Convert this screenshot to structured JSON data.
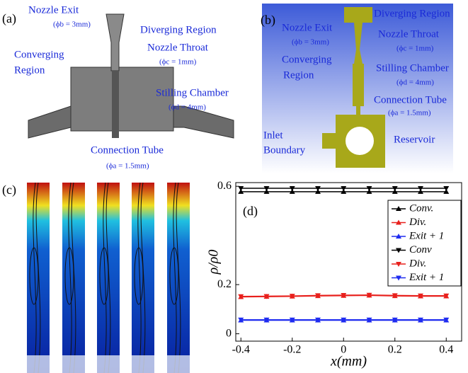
{
  "panels": {
    "a": {
      "label": "(a)",
      "annotations": [
        "Nozzle Exit",
        "(ϕb = 3mm)",
        "Diverging Region",
        "Nozzle Throat",
        "(ϕc = 1mm)",
        "Converging",
        "Region",
        "Stilling Chamber",
        "(ϕd = 4mm)",
        "Connection Tube",
        "(ϕa = 1.5mm)"
      ]
    },
    "b": {
      "label": "(b)",
      "annotations": [
        "Diverging Region",
        "Nozzle Exit",
        "(ϕb = 3mm)",
        "Nozzle Throat",
        "(ϕc = 1mm)",
        "Converging",
        "Region",
        "Stilling Chamber",
        "(ϕd = 4mm)",
        "Connection Tube",
        "(ϕa = 1.5mm)",
        "Inlet",
        "Boundary",
        "Reservoir"
      ]
    },
    "c": {
      "label": "(c)"
    }
  },
  "chart_data": {
    "type": "line",
    "panel_label": "(d)",
    "x_label": "x(mm)",
    "y_label": "ρ/ρ0",
    "x": [
      -0.4,
      -0.3,
      -0.2,
      -0.1,
      0,
      0.1,
      0.2,
      0.3,
      0.4
    ],
    "xlim": [
      -0.42,
      0.46
    ],
    "xticks": [
      -0.4,
      -0.2,
      0,
      0.2,
      0.4
    ],
    "ylim": [
      -0.03,
      0.615
    ],
    "yticks": [
      0,
      0.2,
      0.6
    ],
    "series": [
      {
        "name": "Conv.",
        "color": "#000000",
        "marker": "up",
        "values": [
          0.578,
          0.578,
          0.578,
          0.578,
          0.578,
          0.578,
          0.578,
          0.578,
          0.578
        ]
      },
      {
        "name": "Div.",
        "color": "#e8201c",
        "marker": "up",
        "values": [
          0.15,
          0.151,
          0.152,
          0.154,
          0.155,
          0.156,
          0.154,
          0.153,
          0.153
        ]
      },
      {
        "name": "Exit + 1",
        "color": "#1f2cf0",
        "marker": "up",
        "values": [
          0.055,
          0.055,
          0.055,
          0.055,
          0.055,
          0.055,
          0.055,
          0.055,
          0.055
        ]
      },
      {
        "name": "Conv",
        "color": "#000000",
        "marker": "down",
        "values": [
          0.592,
          0.592,
          0.592,
          0.592,
          0.592,
          0.592,
          0.592,
          0.592,
          0.592
        ]
      },
      {
        "name": "Div.",
        "color": "#e8201c",
        "marker": "down",
        "values": [
          0.152,
          0.153,
          0.154,
          0.156,
          0.157,
          0.158,
          0.156,
          0.155,
          0.155
        ]
      },
      {
        "name": "Exit + 1",
        "color": "#1f2cf0",
        "marker": "down",
        "values": [
          0.057,
          0.057,
          0.057,
          0.057,
          0.057,
          0.057,
          0.057,
          0.057,
          0.057
        ]
      }
    ]
  }
}
